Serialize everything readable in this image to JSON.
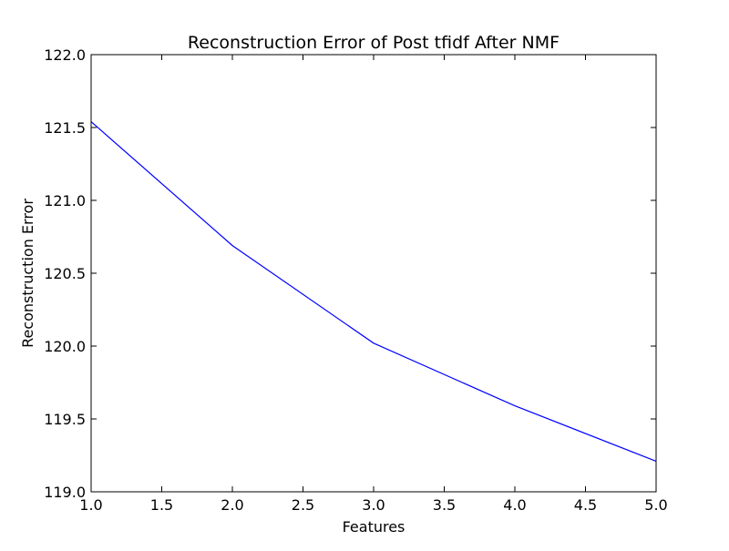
{
  "chart_data": {
    "type": "line",
    "title": "Reconstruction Error of Post tfidf After NMF",
    "xlabel": "Features",
    "ylabel": "Reconstruction Error",
    "xlim": [
      1.0,
      5.0
    ],
    "ylim": [
      119.0,
      122.0
    ],
    "xticks": [
      "1.0",
      "1.5",
      "2.0",
      "2.5",
      "3.0",
      "3.5",
      "4.0",
      "4.5",
      "5.0"
    ],
    "yticks": [
      "119.0",
      "119.5",
      "120.0",
      "120.5",
      "121.0",
      "121.5",
      "122.0"
    ],
    "grid": false,
    "series": [
      {
        "color": "#0000ff",
        "x": [
          1,
          2,
          3,
          4,
          5
        ],
        "y": [
          121.54,
          120.69,
          120.02,
          119.59,
          119.21
        ]
      }
    ]
  }
}
